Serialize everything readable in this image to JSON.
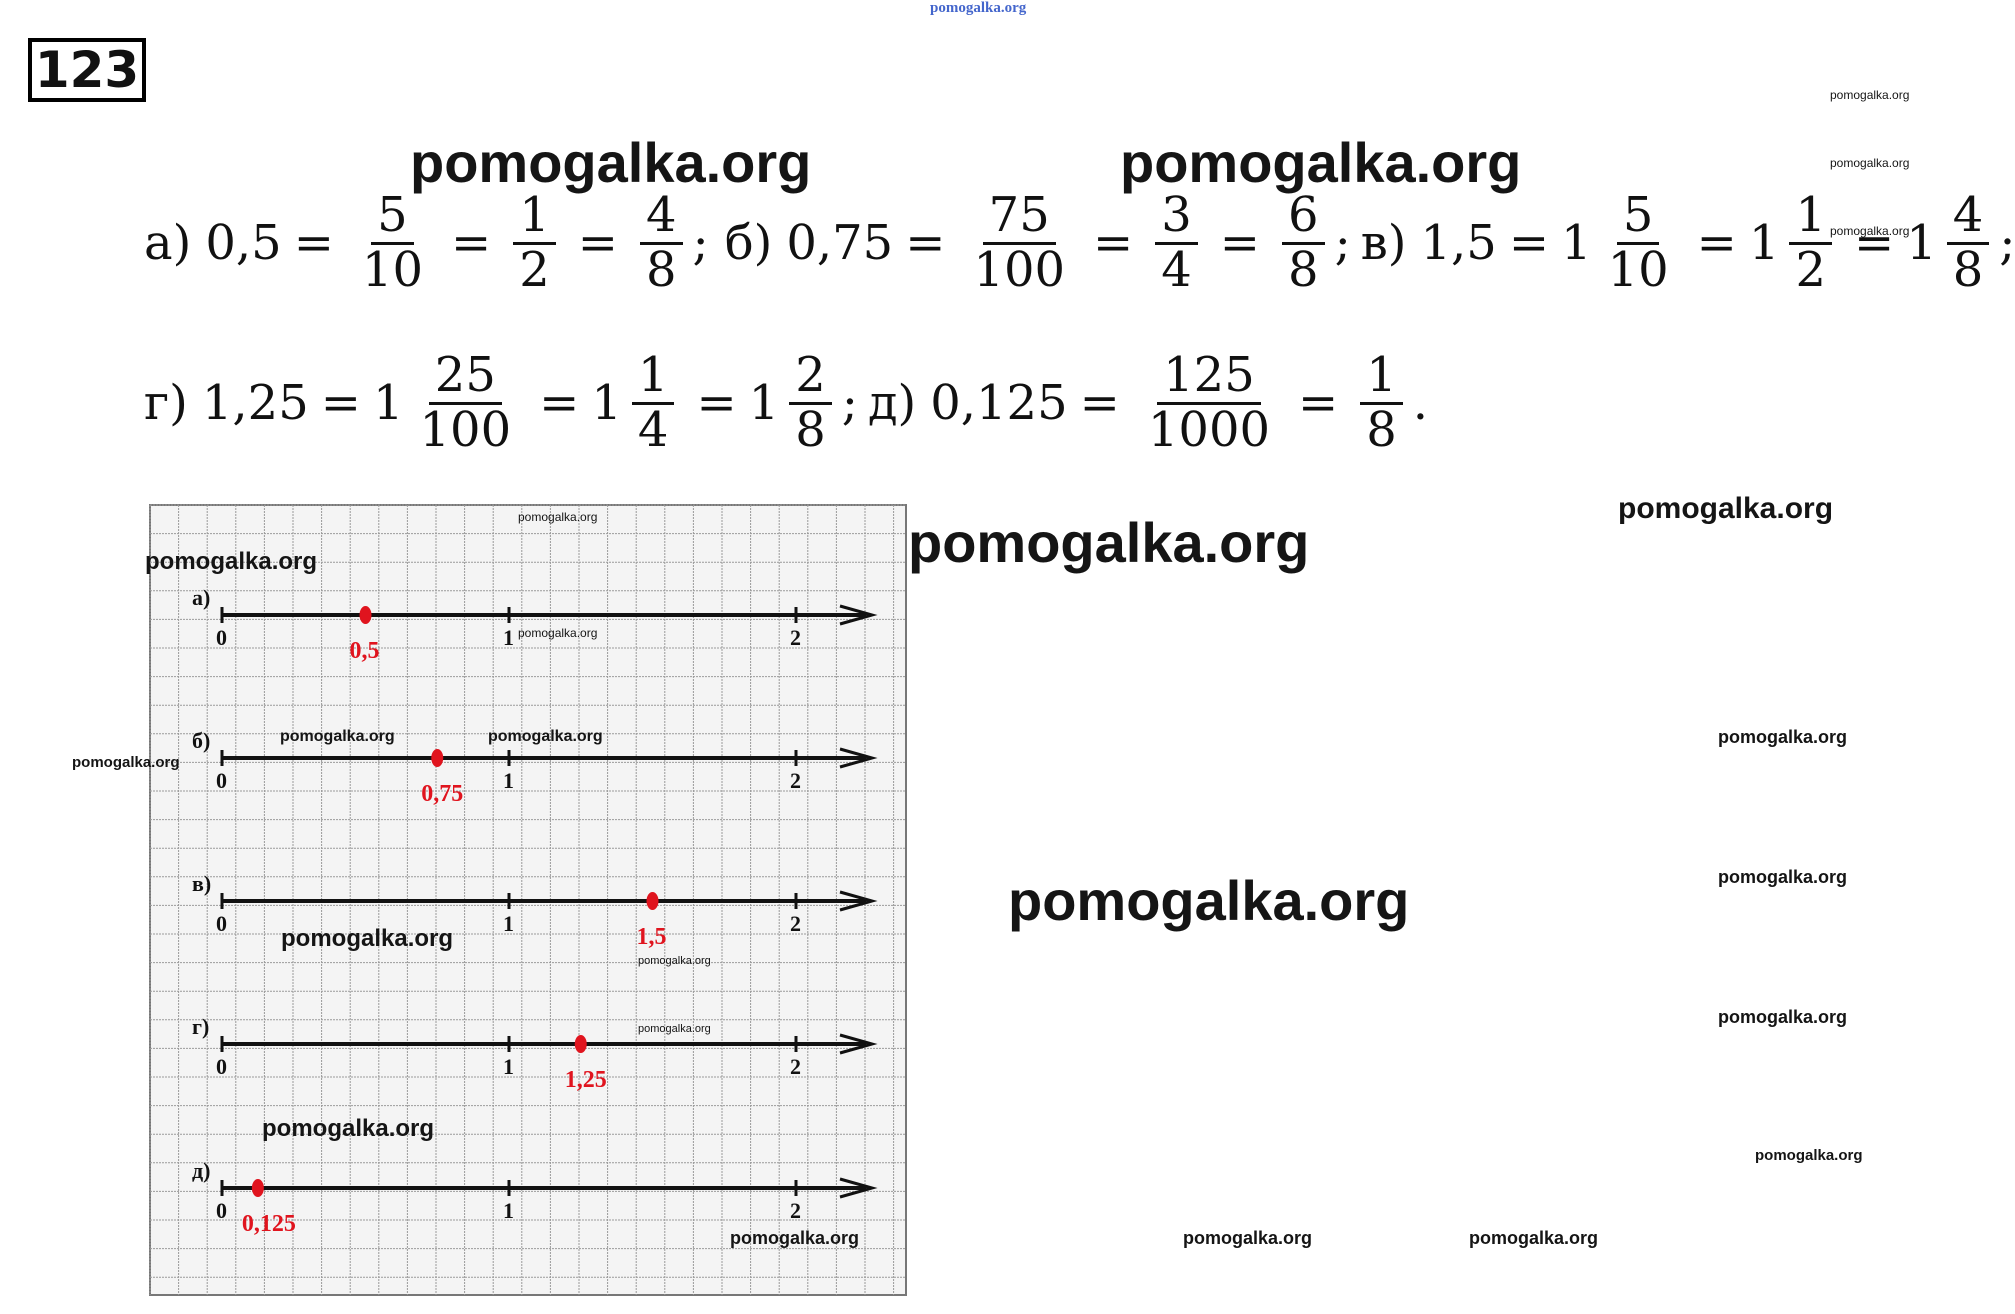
{
  "header": {
    "site_watermark": "pomogalka.org",
    "task_number": "123"
  },
  "equations": {
    "a": {
      "label": "а)",
      "value": "0,5",
      "f1": [
        "5",
        "10"
      ],
      "f2": [
        "1",
        "2"
      ],
      "f3": [
        "4",
        "8"
      ],
      "end": ";"
    },
    "b": {
      "label": "б)",
      "value": "0,75",
      "f1": [
        "75",
        "100"
      ],
      "f2": [
        "3",
        "4"
      ],
      "f3": [
        "6",
        "8"
      ],
      "end": ";"
    },
    "v": {
      "label": "в)",
      "value": "1,5",
      "w1": "1",
      "f1": [
        "5",
        "10"
      ],
      "w2": "1",
      "f2": [
        "1",
        "2"
      ],
      "w3": "1",
      "f3": [
        "4",
        "8"
      ],
      "end": ";"
    },
    "g": {
      "label": "г)",
      "value": "1,25",
      "w1": "1",
      "f1": [
        "25",
        "100"
      ],
      "w2": "1",
      "f2": [
        "1",
        "4"
      ],
      "w3": "1",
      "f3": [
        "2",
        "8"
      ],
      "end": ";"
    },
    "d": {
      "label": "д)",
      "value": "0,125",
      "f1": [
        "125",
        "1000"
      ],
      "f2": [
        "1",
        "8"
      ],
      "end": "."
    }
  },
  "number_lines": [
    {
      "label": "а)",
      "ticks": [
        "0",
        "1",
        "2"
      ],
      "point": 0.5,
      "point_label": "0,5"
    },
    {
      "label": "б)",
      "ticks": [
        "0",
        "1",
        "2"
      ],
      "point": 0.75,
      "point_label": "0,75"
    },
    {
      "label": "в)",
      "ticks": [
        "0",
        "1",
        "2"
      ],
      "point": 1.5,
      "point_label": "1,5"
    },
    {
      "label": "г)",
      "ticks": [
        "0",
        "1",
        "2"
      ],
      "point": 1.25,
      "point_label": "1,25"
    },
    {
      "label": "д)",
      "ticks": [
        "0",
        "1",
        "2"
      ],
      "point": 0.125,
      "point_label": "0,125"
    }
  ],
  "colors": {
    "point": "#e0141e",
    "grid": "#9a9a9a",
    "axis": "#111111",
    "top_watermark": "#4466cc"
  }
}
